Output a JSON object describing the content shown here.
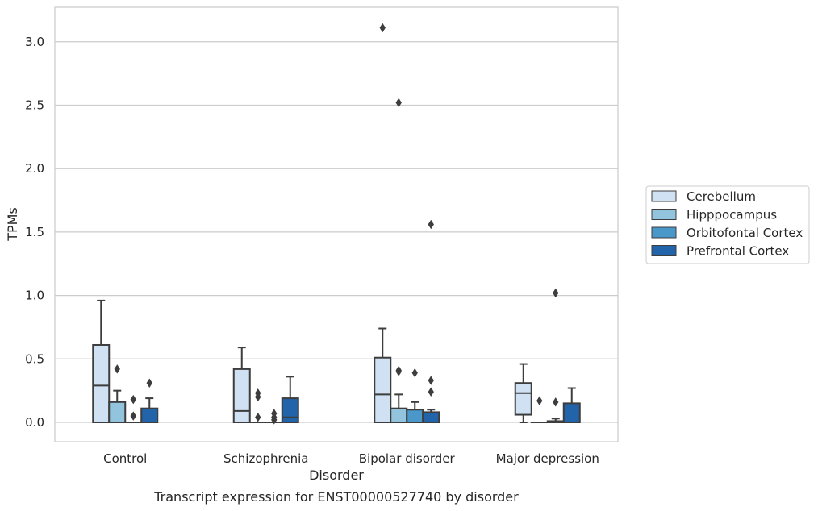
{
  "chart_data": {
    "type": "box",
    "title": "",
    "caption": "Transcript expression for ENST00000527740 by disorder",
    "xlabel": "Disorder",
    "ylabel": "TPMs",
    "ylim": [
      -0.15,
      3.27
    ],
    "yticks": [
      0.0,
      0.5,
      1.0,
      1.5,
      2.0,
      2.5,
      3.0
    ],
    "ytick_labels": [
      "0.0",
      "0.5",
      "1.0",
      "1.5",
      "2.0",
      "2.5",
      "3.0"
    ],
    "grid": "horizontal",
    "legend_position": "right",
    "categories": [
      "Control",
      "Schizophrenia",
      "Bipolar disorder",
      "Major depression"
    ],
    "series": [
      {
        "name": "Cerebellum",
        "color": "#cfe1f2",
        "boxes": [
          {
            "whislo": 0.0,
            "q1": 0.0,
            "med": 0.29,
            "q3": 0.61,
            "whishi": 0.96,
            "fliers": []
          },
          {
            "whislo": 0.0,
            "q1": 0.0,
            "med": 0.09,
            "q3": 0.42,
            "whishi": 0.59,
            "fliers": []
          },
          {
            "whislo": 0.0,
            "q1": 0.0,
            "med": 0.22,
            "q3": 0.51,
            "whishi": 0.74,
            "fliers": [
              3.11
            ]
          },
          {
            "whislo": 0.0,
            "q1": 0.06,
            "med": 0.23,
            "q3": 0.31,
            "whishi": 0.46,
            "fliers": []
          }
        ]
      },
      {
        "name": "Hipppocampus",
        "color": "#93c4de",
        "boxes": [
          {
            "whislo": 0.0,
            "q1": 0.0,
            "med": 0.0,
            "q3": 0.16,
            "whishi": 0.25,
            "fliers": [
              0.42
            ]
          },
          {
            "whislo": 0.0,
            "q1": 0.0,
            "med": 0.0,
            "q3": 0.0,
            "whishi": 0.0,
            "fliers": [
              0.2,
              0.23,
              0.04
            ]
          },
          {
            "whislo": 0.0,
            "q1": 0.0,
            "med": 0.0,
            "q3": 0.11,
            "whishi": 0.22,
            "fliers": [
              0.4,
              0.41,
              2.52
            ]
          },
          {
            "whislo": 0.0,
            "q1": 0.0,
            "med": 0.0,
            "q3": 0.0,
            "whishi": 0.0,
            "fliers": [
              0.17
            ]
          }
        ]
      },
      {
        "name": "Orbitofontal Cortex",
        "color": "#4a98c9",
        "boxes": [
          {
            "whislo": 0.0,
            "q1": 0.0,
            "med": 0.0,
            "q3": 0.0,
            "whishi": 0.0,
            "fliers": [
              0.05,
              0.18
            ]
          },
          {
            "whislo": 0.0,
            "q1": 0.0,
            "med": 0.0,
            "q3": 0.0,
            "whishi": 0.0,
            "fliers": [
              0.02,
              0.04,
              0.07
            ]
          },
          {
            "whislo": 0.0,
            "q1": 0.0,
            "med": 0.0,
            "q3": 0.1,
            "whishi": 0.16,
            "fliers": [
              0.39
            ]
          },
          {
            "whislo": 0.0,
            "q1": 0.0,
            "med": 0.0,
            "q3": 0.01,
            "whishi": 0.03,
            "fliers": [
              0.16,
              1.02
            ]
          }
        ]
      },
      {
        "name": "Prefrontal Cortex",
        "color": "#2264aa",
        "boxes": [
          {
            "whislo": 0.0,
            "q1": 0.0,
            "med": 0.0,
            "q3": 0.11,
            "whishi": 0.19,
            "fliers": [
              0.31
            ]
          },
          {
            "whislo": 0.0,
            "q1": 0.0,
            "med": 0.04,
            "q3": 0.19,
            "whishi": 0.36,
            "fliers": []
          },
          {
            "whislo": 0.0,
            "q1": 0.0,
            "med": 0.0,
            "q3": 0.08,
            "whishi": 0.1,
            "fliers": [
              0.24,
              0.33,
              1.56
            ]
          },
          {
            "whislo": 0.0,
            "q1": 0.0,
            "med": 0.0,
            "q3": 0.15,
            "whishi": 0.27,
            "fliers": []
          }
        ]
      }
    ]
  }
}
